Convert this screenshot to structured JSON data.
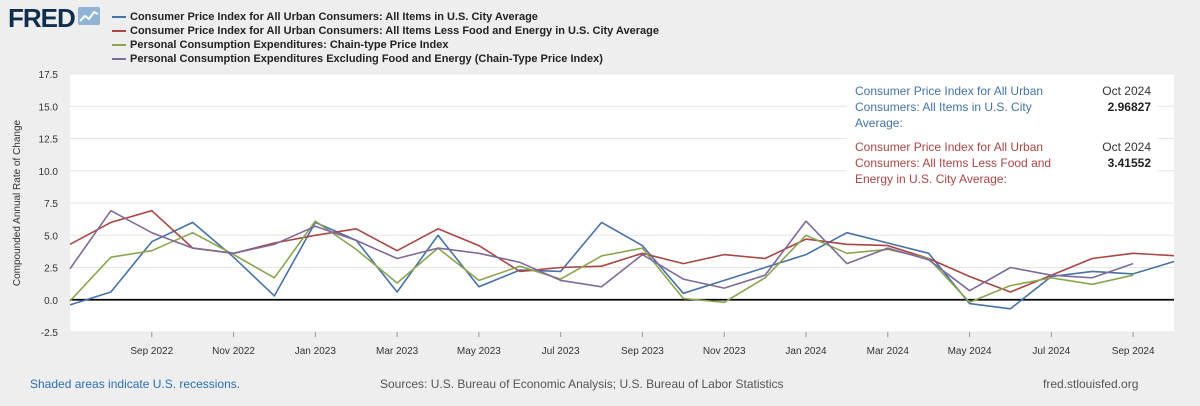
{
  "header": {
    "logo_text": "FRED",
    "logo_mark_icon": "chart-line-icon"
  },
  "chart_data": {
    "type": "line",
    "ylabel": "Compounded Annual Rate of Change",
    "ylim": [
      -2.5,
      17.5
    ],
    "yticks": [
      "17.5",
      "15.0",
      "12.5",
      "10.0",
      "7.5",
      "5.0",
      "2.5",
      "0.0",
      "-2.5"
    ],
    "ytick_values": [
      17.5,
      15.0,
      12.5,
      10.0,
      7.5,
      5.0,
      2.5,
      0.0,
      -2.5
    ],
    "x": [
      "2022-07",
      "2022-08",
      "2022-09",
      "2022-10",
      "2022-11",
      "2022-12",
      "2023-01",
      "2023-02",
      "2023-03",
      "2023-04",
      "2023-05",
      "2023-06",
      "2023-07",
      "2023-08",
      "2023-09",
      "2023-10",
      "2023-11",
      "2023-12",
      "2024-01",
      "2024-02",
      "2024-03",
      "2024-04",
      "2024-05",
      "2024-06",
      "2024-07",
      "2024-08",
      "2024-09",
      "2024-10"
    ],
    "xtick_labels": [
      "Sep 2022",
      "Nov 2022",
      "Jan 2023",
      "Mar 2023",
      "May 2023",
      "Jul 2023",
      "Sep 2023",
      "Nov 2023",
      "Jan 2024",
      "Mar 2024",
      "May 2024",
      "Jul 2024",
      "Sep 2024"
    ],
    "xtick_index": [
      2,
      4,
      6,
      8,
      10,
      12,
      14,
      16,
      18,
      20,
      22,
      24,
      26
    ],
    "grid": true,
    "legend_position": "top-left",
    "series": [
      {
        "name": "Consumer Price Index for All Urban Consumers: All Items in U.S. City Average",
        "color": "#4572a7",
        "values": [
          -0.4,
          0.6,
          4.5,
          6.0,
          3.3,
          0.3,
          6.0,
          4.6,
          0.6,
          5.0,
          1.0,
          2.3,
          2.2,
          6.0,
          4.2,
          0.5,
          1.5,
          2.5,
          3.5,
          5.2,
          4.4,
          3.6,
          -0.3,
          -0.7,
          1.8,
          2.2,
          2.0,
          2.968
        ]
      },
      {
        "name": "Consumer Price Index for All Urban Consumers: All Items Less Food and Energy in U.S. City Average",
        "color": "#aa4643",
        "values": [
          4.3,
          6.0,
          6.9,
          4.0,
          3.6,
          4.4,
          5.0,
          5.5,
          3.8,
          5.5,
          4.2,
          2.2,
          2.5,
          2.6,
          3.6,
          2.8,
          3.5,
          3.2,
          4.7,
          4.3,
          4.2,
          3.2,
          1.8,
          0.6,
          1.9,
          3.2,
          3.6,
          3.416
        ]
      },
      {
        "name": "Personal Consumption Expenditures: Chain-type Price Index",
        "color": "#89a54e",
        "values": [
          -0.1,
          3.3,
          3.8,
          5.2,
          3.5,
          1.7,
          6.1,
          3.9,
          1.3,
          4.0,
          1.5,
          2.6,
          1.6,
          3.4,
          4.0,
          0.1,
          -0.2,
          1.7,
          5.0,
          3.6,
          3.9,
          3.2,
          -0.2,
          1.1,
          1.7,
          1.2,
          1.9,
          null
        ]
      },
      {
        "name": "Personal Consumption Expenditures Excluding Food and Energy (Chain-Type Price Index)",
        "color": "#80699b",
        "values": [
          2.4,
          6.9,
          5.2,
          4.0,
          3.6,
          4.3,
          5.7,
          4.6,
          3.2,
          4.0,
          3.6,
          2.9,
          1.5,
          1.0,
          3.5,
          1.6,
          0.9,
          1.9,
          6.1,
          2.8,
          4.0,
          3.1,
          0.7,
          2.5,
          1.9,
          1.7,
          2.8,
          null
        ]
      }
    ]
  },
  "tooltip": {
    "rows": [
      {
        "label": "Consumer Price Index for All Urban Consumers: All Items in U.S. City Average:",
        "date": "Oct 2024",
        "value": "2.96827",
        "color": "#4572a7"
      },
      {
        "label": "Consumer Price Index for All Urban Consumers: All Items Less Food and Energy in U.S. City Average:",
        "date": "Oct 2024",
        "value": "3.41552",
        "color": "#aa4643"
      }
    ]
  },
  "footer": {
    "recession_note": "Shaded areas indicate U.S. recessions.",
    "sources": "Sources: U.S. Bureau of Economic Analysis; U.S. Bureau of Labor Statistics",
    "site": "fred.stlouisfed.org"
  }
}
